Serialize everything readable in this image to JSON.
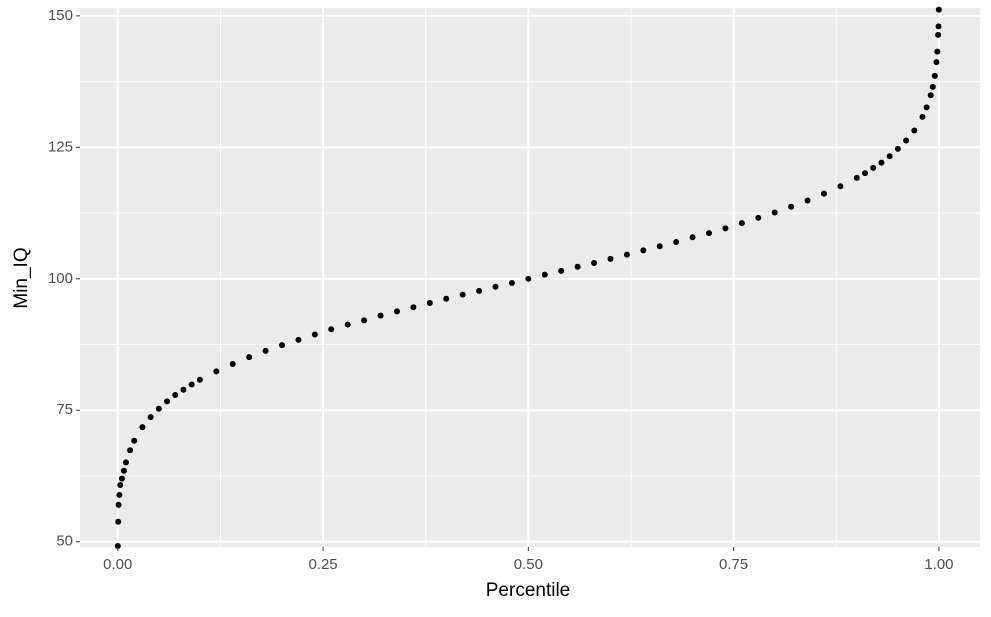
{
  "chart_data": {
    "type": "scatter",
    "x_label": "Percentile",
    "y_label": "Min_IQ",
    "x": [
      0.0001,
      0.0005,
      0.001,
      0.002,
      0.003,
      0.005,
      0.0075,
      0.01,
      0.015,
      0.02,
      0.03,
      0.04,
      0.05,
      0.06,
      0.07,
      0.08,
      0.09,
      0.1,
      0.12,
      0.14,
      0.16,
      0.18,
      0.2,
      0.22,
      0.24,
      0.26,
      0.28,
      0.3,
      0.32,
      0.34,
      0.36,
      0.38,
      0.4,
      0.42,
      0.44,
      0.46,
      0.48,
      0.5,
      0.52,
      0.54,
      0.56,
      0.58,
      0.6,
      0.62,
      0.64,
      0.66,
      0.68,
      0.7,
      0.72,
      0.74,
      0.76,
      0.78,
      0.8,
      0.82,
      0.84,
      0.86,
      0.88,
      0.9,
      0.91,
      0.92,
      0.93,
      0.94,
      0.95,
      0.96,
      0.97,
      0.98,
      0.985,
      0.99,
      0.9925,
      0.995,
      0.997,
      0.998,
      0.999,
      0.9995,
      0.9999
    ],
    "values": [
      49.2,
      53.8,
      57.0,
      58.9,
      60.8,
      62.0,
      63.5,
      65.1,
      67.4,
      69.2,
      71.8,
      73.7,
      75.3,
      76.7,
      77.9,
      78.9,
      79.9,
      80.8,
      82.4,
      83.8,
      85.1,
      86.3,
      87.4,
      88.4,
      89.4,
      90.4,
      91.3,
      92.1,
      93.0,
      93.8,
      94.6,
      95.4,
      96.2,
      97.0,
      97.7,
      98.5,
      99.2,
      100.0,
      100.8,
      101.5,
      102.3,
      103.0,
      103.8,
      104.6,
      105.4,
      106.2,
      107.0,
      107.9,
      108.7,
      109.6,
      110.6,
      111.6,
      112.6,
      113.7,
      114.9,
      116.2,
      117.6,
      119.2,
      120.1,
      121.1,
      122.1,
      123.3,
      124.7,
      126.3,
      128.2,
      130.8,
      132.6,
      134.9,
      136.5,
      138.6,
      141.2,
      143.2,
      146.4,
      148.0,
      151.2
    ],
    "color": "#000000",
    "xlim": [
      -0.046,
      1.05
    ],
    "ylim": [
      49.0,
      151.5
    ],
    "xticks": [
      {
        "value": 0,
        "label": "0.00"
      },
      0.25,
      {
        "value": 0.5,
        "label": "0.50"
      },
      0.75,
      {
        "value": 1,
        "label": "1.00"
      }
    ],
    "yticks": [
      50,
      75,
      100,
      125,
      150
    ],
    "x_minor_ticks": [
      0.125,
      0.375,
      0.625,
      0.875
    ],
    "y_minor_ticks": [
      62.5,
      87.5,
      112.5,
      137.5
    ],
    "grid": true
  }
}
